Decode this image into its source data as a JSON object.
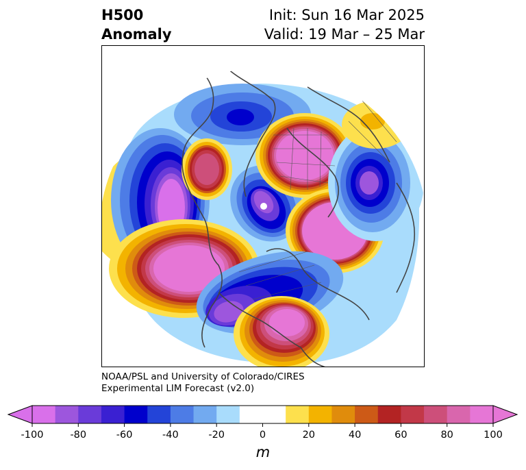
{
  "header": {
    "title_line1": "H500",
    "title_line2": "Anomaly",
    "init": "Init: Sun 16 Mar 2025",
    "valid": "Valid: 19 Mar – 25 Mar"
  },
  "credit": {
    "line1": "NOAA/PSL and University of Colorado/CIRES",
    "line2": "Experimental LIM Forecast (v2.0)"
  },
  "colorbar": {
    "unit": "m",
    "ticks": [
      "-100",
      "-80",
      "-60",
      "-40",
      "-20",
      "0",
      "20",
      "40",
      "60",
      "80",
      "100"
    ],
    "colors": [
      "#d970ea",
      "#9d56dd",
      "#6a3bd9",
      "#3a20d2",
      "#0000cc",
      "#2344d8",
      "#4d7ce6",
      "#72aaf0",
      "#a9dcfc",
      "#ffffff",
      "#ffffff",
      "#fde04d",
      "#f3b300",
      "#e08c0c",
      "#cd5a17",
      "#b32323",
      "#c23848",
      "#cd4f7a",
      "#d966ad",
      "#e676d6"
    ]
  }
}
